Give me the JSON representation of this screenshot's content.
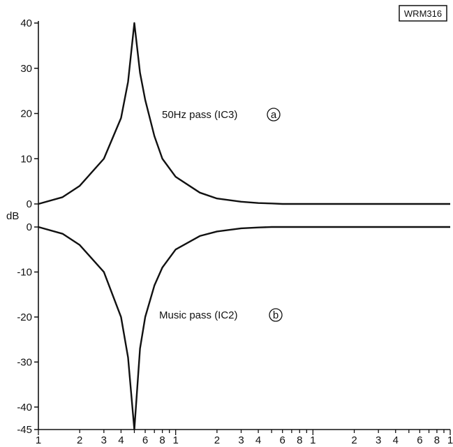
{
  "badge": "WRM316",
  "chart_data": [
    {
      "type": "line",
      "x_scale": "log",
      "xlim": [
        1,
        1000
      ],
      "ylim": [
        0,
        40
      ],
      "y_ticks": [
        0,
        10,
        20,
        30,
        40
      ],
      "annotation": "50Hz pass (IC3)",
      "annotation_marker": "a",
      "series": [
        {
          "x": [
            1,
            1.5,
            2,
            3,
            4,
            4.5,
            5,
            5.5,
            6,
            7,
            8,
            10,
            15,
            20,
            30,
            40,
            50,
            60,
            100,
            1000
          ],
          "y": [
            0,
            1.5,
            4,
            10,
            19,
            27,
            40,
            29,
            23,
            15,
            10,
            6,
            2.5,
            1.2,
            0.5,
            0.2,
            0.1,
            0,
            0,
            0
          ]
        }
      ]
    },
    {
      "type": "line",
      "x_scale": "log",
      "xlim": [
        1,
        1000
      ],
      "ylim": [
        -45,
        0
      ],
      "y_ticks": [
        0,
        -10,
        -20,
        -30,
        -40,
        -45
      ],
      "annotation": "Music pass (IC2)",
      "annotation_marker": "b",
      "series": [
        {
          "x": [
            1,
            1.5,
            2,
            3,
            4,
            4.5,
            5,
            5.5,
            6,
            7,
            8,
            10,
            15,
            20,
            30,
            40,
            50,
            60,
            100,
            1000
          ],
          "y": [
            0,
            -1.5,
            -4,
            -10,
            -20,
            -29,
            -45,
            -27,
            -20,
            -13,
            -9,
            -5,
            -2,
            -1,
            -0.3,
            -0.1,
            0,
            0,
            0,
            0
          ]
        }
      ]
    }
  ],
  "y_unit_label": "dB",
  "x_axis": {
    "tick_labels": [
      "1",
      "2",
      "3",
      "4",
      "6",
      "8",
      "1",
      "2",
      "3",
      "4",
      "6",
      "8",
      "1",
      "2",
      "3",
      "4",
      "6",
      "8",
      "1"
    ],
    "tick_values": [
      1,
      2,
      3,
      4,
      6,
      8,
      10,
      20,
      30,
      40,
      60,
      80,
      100,
      200,
      300,
      400,
      600,
      800,
      1000
    ]
  }
}
